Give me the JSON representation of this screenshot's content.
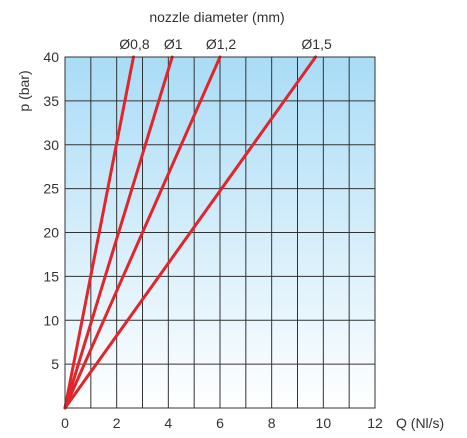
{
  "chart_data": {
    "type": "line",
    "top_title": "nozzle diameter (mm)",
    "xlabel": "Q (Nl/s)",
    "ylabel": "p (bar)",
    "xlim": [
      0,
      12
    ],
    "ylim": [
      0,
      40
    ],
    "x_ticks": [
      "0",
      "2",
      "4",
      "6",
      "8",
      "10",
      "12"
    ],
    "y_ticks": [
      "5",
      "10",
      "15",
      "20",
      "25",
      "30",
      "35",
      "40"
    ],
    "grid": true,
    "colors": {
      "line": "#e0262b",
      "grid": "#333333",
      "gradient_top": "#a9dcf6",
      "gradient_bottom": "#ffffff"
    },
    "series": [
      {
        "name": "Ø0,8",
        "x": [
          0,
          2.65
        ],
        "y": [
          0,
          40
        ]
      },
      {
        "name": "Ø1",
        "x": [
          0,
          4.15
        ],
        "y": [
          0,
          40
        ]
      },
      {
        "name": "Ø1,2",
        "x": [
          0,
          6.0
        ],
        "y": [
          0,
          40
        ]
      },
      {
        "name": "Ø1,5",
        "x": [
          0,
          9.7
        ],
        "y": [
          0,
          40
        ]
      }
    ]
  }
}
